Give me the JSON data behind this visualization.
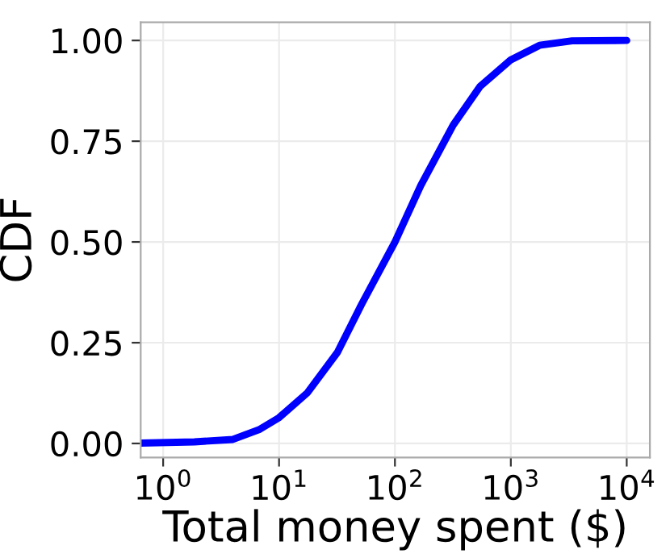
{
  "chart_data": {
    "type": "line",
    "xlabel": "Total money spent ($)",
    "ylabel": "CDF",
    "log": "x",
    "xlim": [
      0.64,
      15850
    ],
    "xticks": [
      {
        "value": 1,
        "label": "10$^{0}$"
      },
      {
        "value": 10,
        "label": "10$^{1}$"
      },
      {
        "value": 100,
        "label": "10$^{2}$"
      },
      {
        "value": 1000,
        "label": "10$^{3}$"
      },
      {
        "value": 10000,
        "label": "10$^{4}$"
      }
    ],
    "ylim": [
      -0.035,
      1.045
    ],
    "yticks": [
      {
        "value": 0,
        "label": "0.00"
      },
      {
        "value": 0.25,
        "label": "0.25"
      },
      {
        "value": 0.5,
        "label": "0.50"
      },
      {
        "value": 0.75,
        "label": "0.75"
      },
      {
        "value": 1,
        "label": "1.00"
      }
    ],
    "grid": true,
    "marker": "none",
    "line_style": "solid",
    "series": [
      {
        "color": "#0000ff",
        "x": [
          0.64,
          1.86,
          4,
          6.7,
          10,
          17.6,
          31.9,
          51.5,
          100,
          167,
          318,
          543,
          1000,
          1770,
          3380,
          10000
        ],
        "values": [
          0.001,
          0.004,
          0.01,
          0.034,
          0.064,
          0.126,
          0.226,
          0.345,
          0.5,
          0.64,
          0.79,
          0.886,
          0.952,
          0.988,
          0.999,
          1.0
        ]
      }
    ]
  }
}
